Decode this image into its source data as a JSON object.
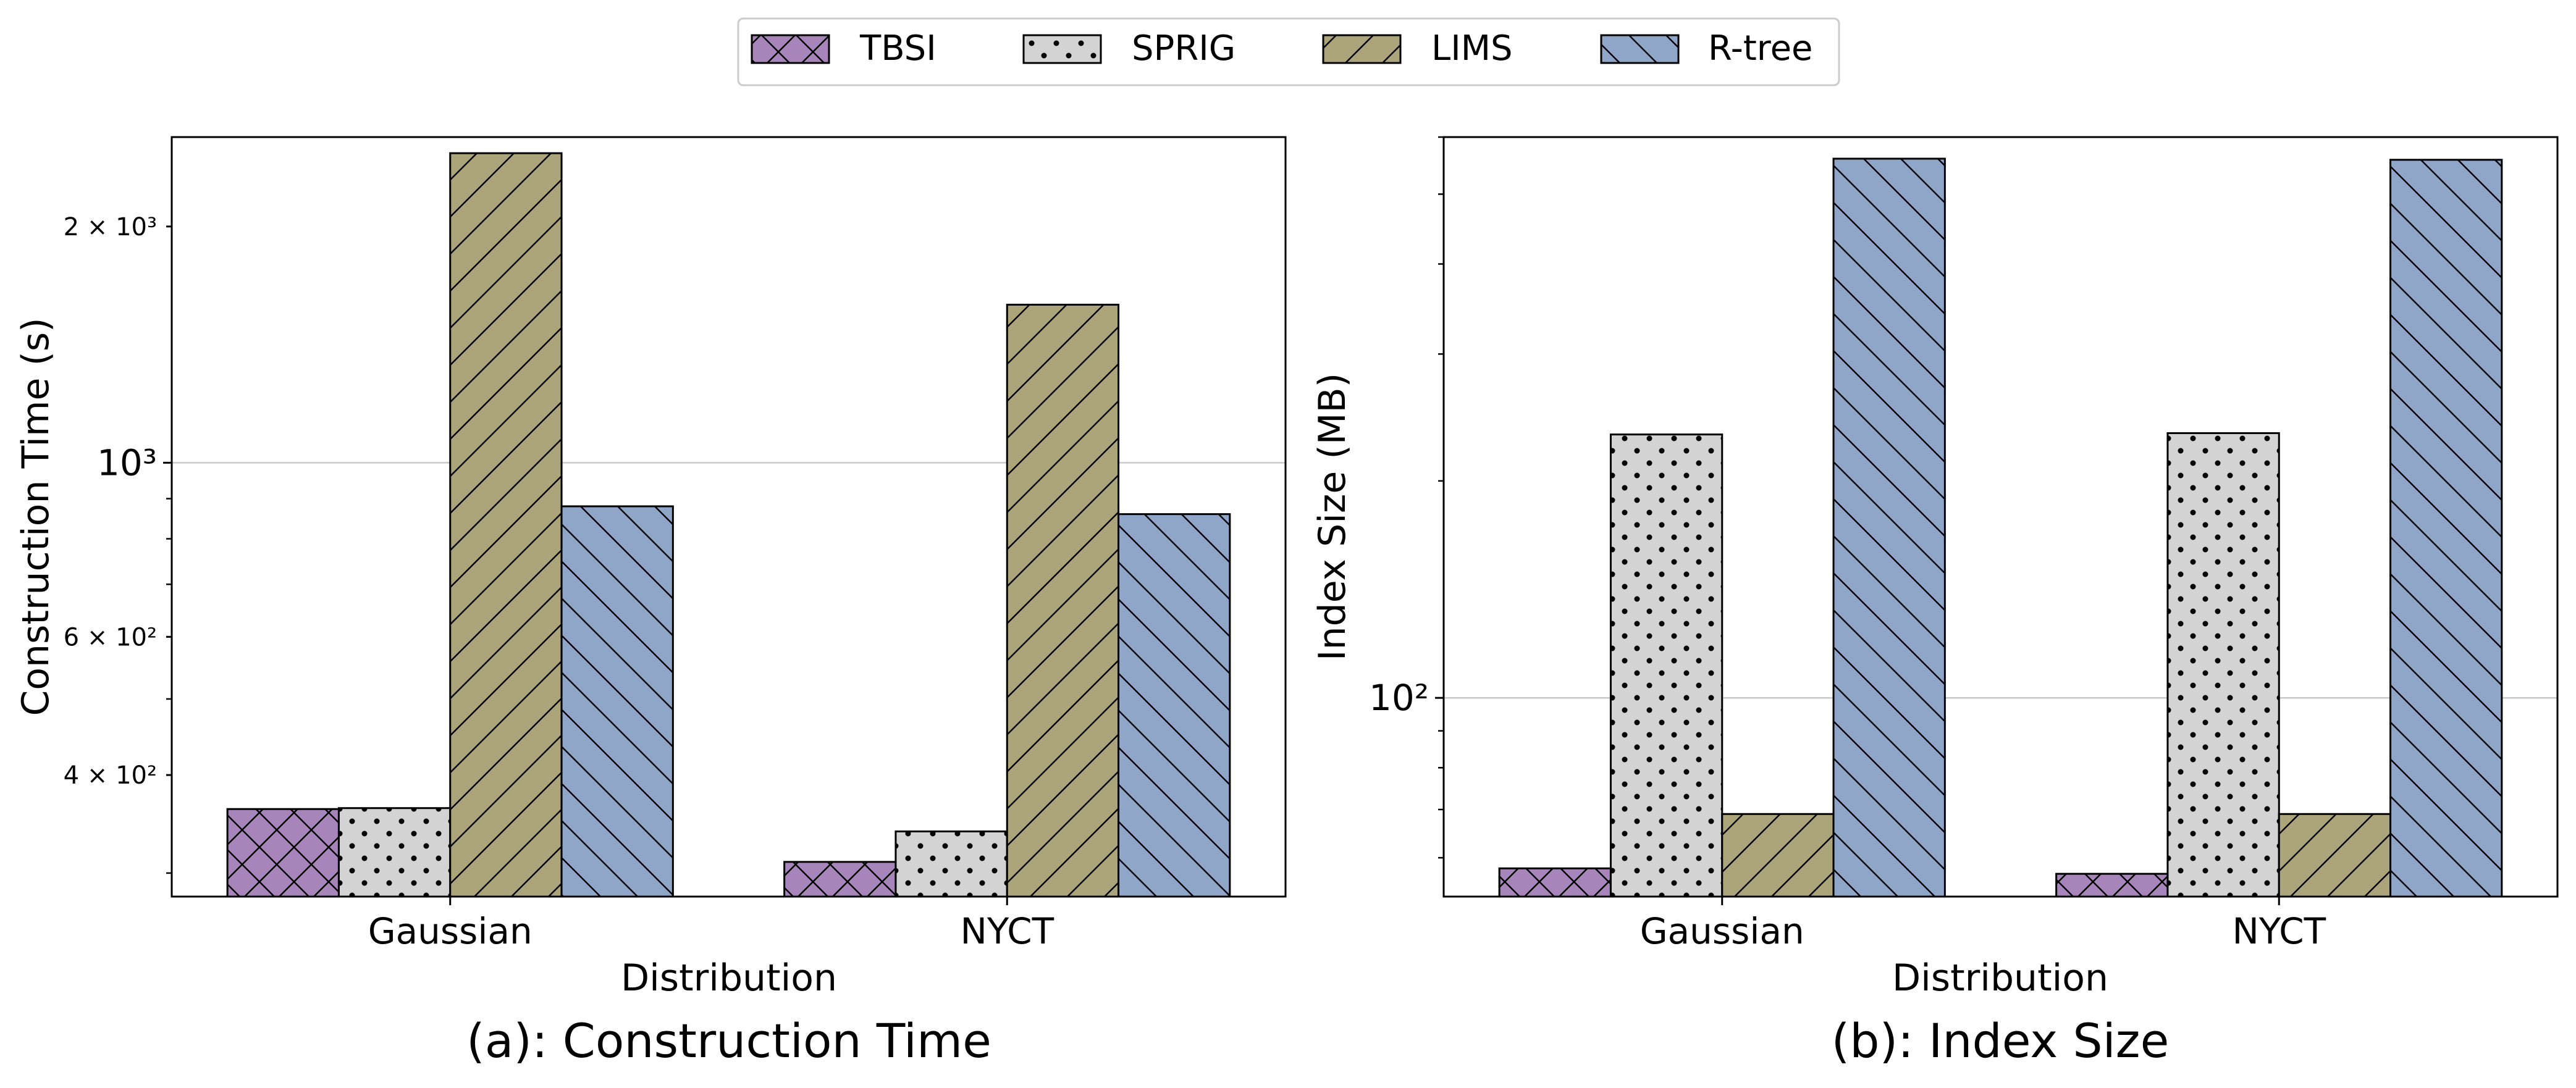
{
  "colors": {
    "TBSI": "#a784b9",
    "SPRIG": "#d3d3d3",
    "LIMS": "#aca47a",
    "R-tree": "#8fa6c9"
  },
  "hatches": {
    "TBSI": "crosshatch",
    "SPRIG": "dots",
    "LIMS": "forward-diagonal",
    "R-tree": "back-diagonal"
  },
  "legend": {
    "placement": "top-center",
    "entries": [
      "TBSI",
      "SPRIG",
      "LIMS",
      "R-tree"
    ]
  },
  "chart_data": [
    {
      "type": "bar",
      "caption": "(a): Construction Time",
      "xlabel": "Distribution",
      "ylabel": "Construction Time (s)",
      "yscale": "log",
      "ylim": [
        280,
        2600
      ],
      "grid": "major-y",
      "categories": [
        "Gaussian",
        "NYCT"
      ],
      "yticks": [
        {
          "value": 400,
          "label": "4 × 10²",
          "major": false
        },
        {
          "value": 600,
          "label": "6 × 10²",
          "major": false
        },
        {
          "value": 1000,
          "label": "10³",
          "major": true
        },
        {
          "value": 2000,
          "label": "2 × 10³",
          "major": false
        }
      ],
      "minor_ticks": [
        300,
        500,
        700,
        800,
        900
      ],
      "series": [
        {
          "name": "TBSI",
          "values": [
            362,
            310
          ]
        },
        {
          "name": "SPRIG",
          "values": [
            363,
            339
          ]
        },
        {
          "name": "LIMS",
          "values": [
            2480,
            1590
          ]
        },
        {
          "name": "R-tree",
          "values": [
            880,
            860
          ]
        }
      ]
    },
    {
      "type": "bar",
      "caption": "(b): Index Size",
      "xlabel": "Distribution",
      "ylabel": "Index Size (MB)",
      "yscale": "log",
      "ylim": [
        53,
        600
      ],
      "grid": "major-y",
      "categories": [
        "Gaussian",
        "NYCT"
      ],
      "yticks": [
        {
          "value": 100,
          "label": "10²",
          "major": true
        }
      ],
      "minor_ticks": [
        60,
        70,
        80,
        90,
        200,
        300,
        400,
        500,
        600
      ],
      "series": [
        {
          "name": "TBSI",
          "values": [
            58,
            57
          ]
        },
        {
          "name": "SPRIG",
          "values": [
            232,
            233
          ]
        },
        {
          "name": "LIMS",
          "values": [
            69,
            69
          ]
        },
        {
          "name": "R-tree",
          "values": [
            560,
            558
          ]
        }
      ]
    }
  ]
}
